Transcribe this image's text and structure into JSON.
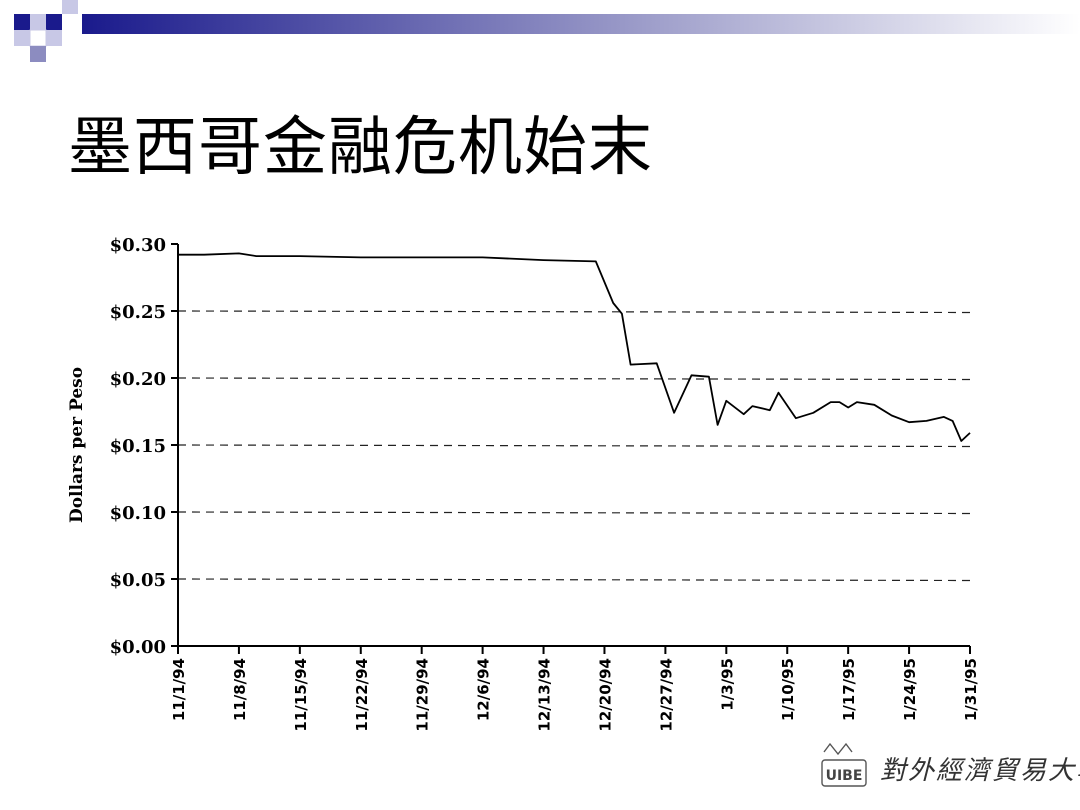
{
  "slide": {
    "title": "墨西哥金融危机始末"
  },
  "logo": {
    "emblem_text": "UIBE",
    "name_text": "對外經濟貿易大學"
  },
  "chart_data": {
    "type": "line",
    "title": "",
    "xlabel": "",
    "ylabel": "Dollars per Peso",
    "ylim": [
      0,
      0.3
    ],
    "grid": "dashed horizontal at each y tick",
    "y_ticks": [
      0.0,
      0.05,
      0.1,
      0.15,
      0.2,
      0.25,
      0.3
    ],
    "y_tick_labels": [
      "$0.00",
      "$0.05",
      "$0.10",
      "$0.15",
      "$0.20",
      "$0.25",
      "$0.30"
    ],
    "x_tick_labels": [
      "11/1/94",
      "11/8/94",
      "11/15/94",
      "11/22/94",
      "11/29/94",
      "12/6/94",
      "12/13/94",
      "12/20/94",
      "12/27/94",
      "1/3/95",
      "1/10/95",
      "1/17/95",
      "1/24/95",
      "1/31/95"
    ],
    "series": [
      {
        "values": [
          {
            "x": "11/1/94",
            "y": 0.292
          },
          {
            "x": "11/4/94",
            "y": 0.292
          },
          {
            "x": "11/8/94",
            "y": 0.293
          },
          {
            "x": "11/10/94",
            "y": 0.291
          },
          {
            "x": "11/15/94",
            "y": 0.291
          },
          {
            "x": "11/22/94",
            "y": 0.29
          },
          {
            "x": "11/29/94",
            "y": 0.29
          },
          {
            "x": "12/6/94",
            "y": 0.29
          },
          {
            "x": "12/13/94",
            "y": 0.288
          },
          {
            "x": "12/19/94",
            "y": 0.287
          },
          {
            "x": "12/21/94",
            "y": 0.256
          },
          {
            "x": "12/22/94",
            "y": 0.248
          },
          {
            "x": "12/23/94",
            "y": 0.21
          },
          {
            "x": "12/26/94",
            "y": 0.211
          },
          {
            "x": "12/28/94",
            "y": 0.174
          },
          {
            "x": "12/30/94",
            "y": 0.202
          },
          {
            "x": "1/1/95",
            "y": 0.201
          },
          {
            "x": "1/2/95",
            "y": 0.165
          },
          {
            "x": "1/3/95",
            "y": 0.183
          },
          {
            "x": "1/5/95",
            "y": 0.173
          },
          {
            "x": "1/6/95",
            "y": 0.179
          },
          {
            "x": "1/8/95",
            "y": 0.176
          },
          {
            "x": "1/9/95",
            "y": 0.189
          },
          {
            "x": "1/11/95",
            "y": 0.17
          },
          {
            "x": "1/13/95",
            "y": 0.174
          },
          {
            "x": "1/15/95",
            "y": 0.182
          },
          {
            "x": "1/16/95",
            "y": 0.182
          },
          {
            "x": "1/17/95",
            "y": 0.178
          },
          {
            "x": "1/18/95",
            "y": 0.182
          },
          {
            "x": "1/20/95",
            "y": 0.18
          },
          {
            "x": "1/22/95",
            "y": 0.172
          },
          {
            "x": "1/24/95",
            "y": 0.167
          },
          {
            "x": "1/26/95",
            "y": 0.168
          },
          {
            "x": "1/28/95",
            "y": 0.171
          },
          {
            "x": "1/29/95",
            "y": 0.168
          },
          {
            "x": "1/30/95",
            "y": 0.153
          },
          {
            "x": "1/31/95",
            "y": 0.159
          }
        ]
      }
    ]
  }
}
